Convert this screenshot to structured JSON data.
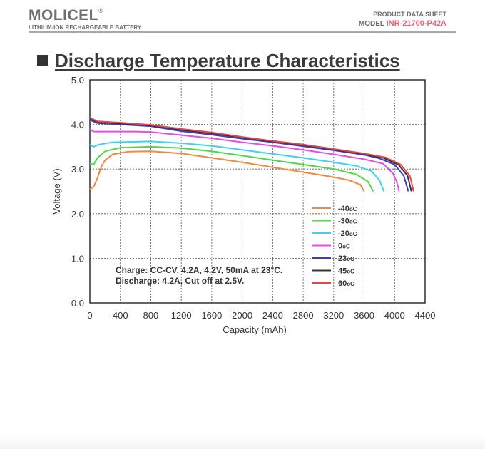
{
  "header": {
    "logo": "MOLICEL",
    "logo_mark": "®",
    "subtitle": "LITHIUM-ION RECHARGEABLE BATTERY",
    "doc_type": "PRODUCT DATA SHEET",
    "model_label": "MODEL",
    "model_value": "INR-21700-P42A"
  },
  "section": {
    "title": "Discharge Temperature Characteristics"
  },
  "chart_data": {
    "type": "line",
    "title": "",
    "xlabel": "Capacity (mAh)",
    "ylabel": "Voltage (V)",
    "xlim": [
      0,
      4400
    ],
    "ylim": [
      0.0,
      5.0
    ],
    "xticks": [
      "0",
      "400",
      "800",
      "1200",
      "1600",
      "2000",
      "2400",
      "2800",
      "3200",
      "3600",
      "4000",
      "4400"
    ],
    "yticks": [
      "0.0",
      "1.0",
      "2.0",
      "3.0",
      "4.0",
      "5.0"
    ],
    "grid": true,
    "legend_position": "right",
    "annotation": [
      "Charge: CC-CV, 4.2A, 4.2V, 50mA at 23",
      "°C.",
      "Discharge: 4.2A, Cut off at 2.5V."
    ],
    "series": [
      {
        "name": "-40",
        "unit": "oC",
        "color": "#f08a3c",
        "points": [
          [
            0,
            2.55
          ],
          [
            50,
            2.6
          ],
          [
            100,
            2.8
          ],
          [
            150,
            3.05
          ],
          [
            200,
            3.2
          ],
          [
            300,
            3.33
          ],
          [
            500,
            3.39
          ],
          [
            800,
            3.4
          ],
          [
            1200,
            3.35
          ],
          [
            1600,
            3.25
          ],
          [
            2000,
            3.15
          ],
          [
            2400,
            3.04
          ],
          [
            2800,
            2.93
          ],
          [
            3200,
            2.82
          ],
          [
            3400,
            2.75
          ],
          [
            3550,
            2.65
          ],
          [
            3600,
            2.5
          ]
        ]
      },
      {
        "name": "-30",
        "unit": "oC",
        "color": "#4cd94c",
        "points": [
          [
            0,
            3.12
          ],
          [
            50,
            3.1
          ],
          [
            100,
            3.25
          ],
          [
            200,
            3.4
          ],
          [
            400,
            3.48
          ],
          [
            800,
            3.5
          ],
          [
            1200,
            3.47
          ],
          [
            1600,
            3.4
          ],
          [
            2000,
            3.3
          ],
          [
            2400,
            3.2
          ],
          [
            2800,
            3.1
          ],
          [
            3200,
            3.0
          ],
          [
            3500,
            2.88
          ],
          [
            3650,
            2.72
          ],
          [
            3720,
            2.5
          ]
        ]
      },
      {
        "name": "-20",
        "unit": "oC",
        "color": "#3cd2f0",
        "points": [
          [
            0,
            3.55
          ],
          [
            50,
            3.5
          ],
          [
            120,
            3.55
          ],
          [
            300,
            3.6
          ],
          [
            800,
            3.62
          ],
          [
            1200,
            3.58
          ],
          [
            1600,
            3.52
          ],
          [
            2000,
            3.43
          ],
          [
            2400,
            3.34
          ],
          [
            2800,
            3.25
          ],
          [
            3200,
            3.15
          ],
          [
            3500,
            3.07
          ],
          [
            3700,
            2.95
          ],
          [
            3800,
            2.75
          ],
          [
            3860,
            2.5
          ]
        ]
      },
      {
        "name": "0",
        "unit": "oC",
        "color": "#e64ce6",
        "points": [
          [
            0,
            3.9
          ],
          [
            50,
            3.84
          ],
          [
            200,
            3.84
          ],
          [
            600,
            3.84
          ],
          [
            800,
            3.83
          ],
          [
            1200,
            3.76
          ],
          [
            1600,
            3.69
          ],
          [
            2000,
            3.6
          ],
          [
            2400,
            3.52
          ],
          [
            2800,
            3.43
          ],
          [
            3200,
            3.33
          ],
          [
            3600,
            3.22
          ],
          [
            3850,
            3.12
          ],
          [
            3980,
            2.9
          ],
          [
            4030,
            2.7
          ],
          [
            4060,
            2.5
          ]
        ]
      },
      {
        "name": "23",
        "unit": "oC",
        "color": "#3c3cc8",
        "points": [
          [
            0,
            4.1
          ],
          [
            100,
            4.03
          ],
          [
            400,
            4.0
          ],
          [
            800,
            3.96
          ],
          [
            1200,
            3.85
          ],
          [
            1600,
            3.77
          ],
          [
            2000,
            3.68
          ],
          [
            2400,
            3.6
          ],
          [
            2800,
            3.51
          ],
          [
            3200,
            3.42
          ],
          [
            3600,
            3.32
          ],
          [
            3800,
            3.24
          ],
          [
            4000,
            3.1
          ],
          [
            4120,
            2.85
          ],
          [
            4180,
            2.5
          ]
        ]
      },
      {
        "name": "45",
        "unit": "oC",
        "color": "#333333",
        "points": [
          [
            0,
            4.13
          ],
          [
            100,
            4.06
          ],
          [
            400,
            4.02
          ],
          [
            800,
            3.98
          ],
          [
            1200,
            3.88
          ],
          [
            1600,
            3.8
          ],
          [
            2000,
            3.71
          ],
          [
            2400,
            3.62
          ],
          [
            2800,
            3.54
          ],
          [
            3200,
            3.44
          ],
          [
            3600,
            3.34
          ],
          [
            3850,
            3.25
          ],
          [
            4050,
            3.1
          ],
          [
            4170,
            2.85
          ],
          [
            4220,
            2.5
          ]
        ]
      },
      {
        "name": "60",
        "unit": "oC",
        "color": "#e84646",
        "points": [
          [
            0,
            4.15
          ],
          [
            100,
            4.07
          ],
          [
            400,
            4.04
          ],
          [
            800,
            3.99
          ],
          [
            1200,
            3.9
          ],
          [
            1600,
            3.82
          ],
          [
            2000,
            3.72
          ],
          [
            2400,
            3.63
          ],
          [
            2800,
            3.55
          ],
          [
            3200,
            3.45
          ],
          [
            3600,
            3.35
          ],
          [
            3880,
            3.26
          ],
          [
            4080,
            3.1
          ],
          [
            4200,
            2.85
          ],
          [
            4250,
            2.5
          ]
        ]
      }
    ]
  }
}
